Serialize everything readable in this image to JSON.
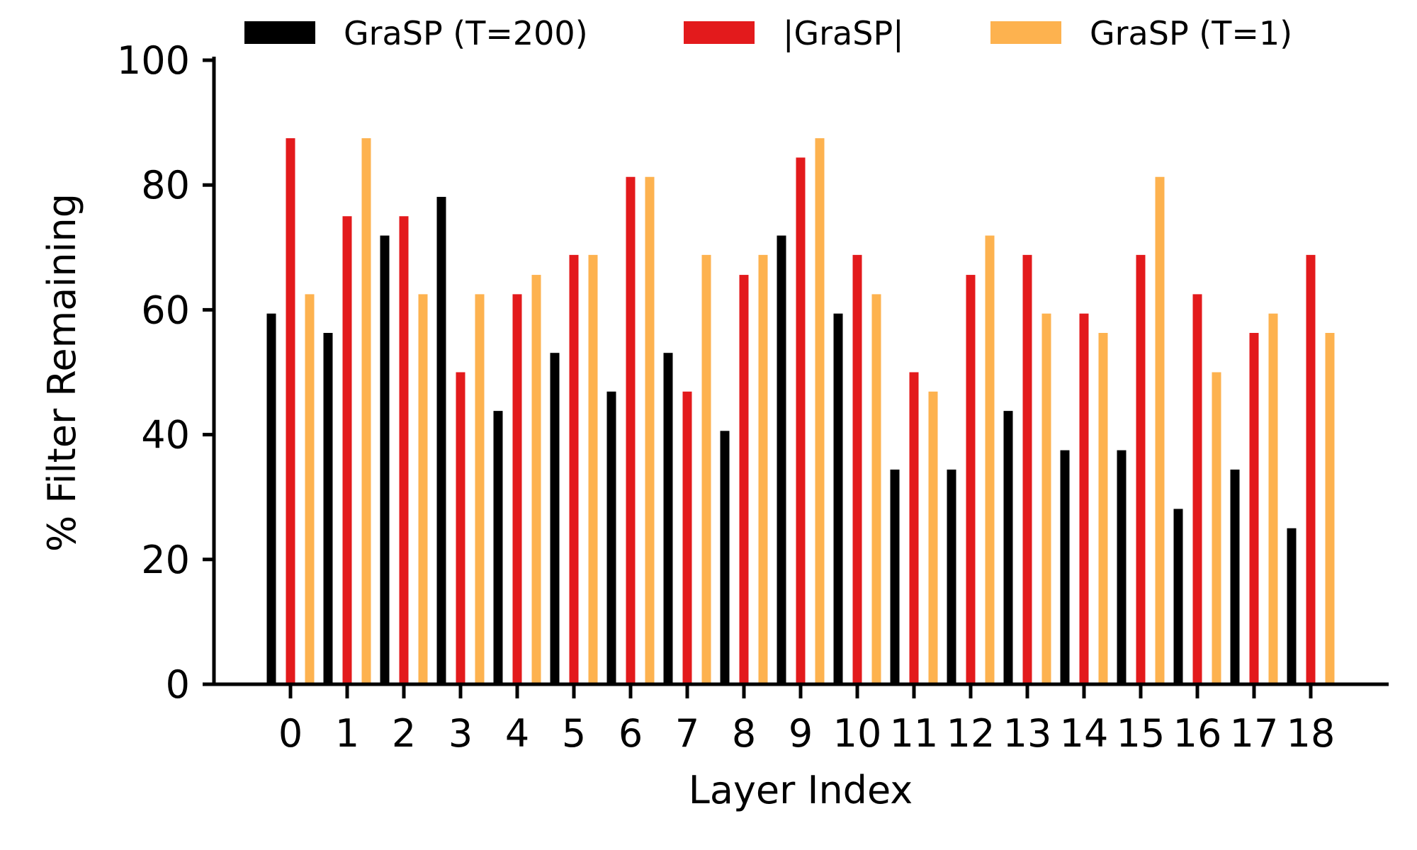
{
  "chart_data": {
    "type": "bar",
    "xlabel": "Layer Index",
    "ylabel": "% Filter Remaining",
    "ylim": [
      0,
      100
    ],
    "yticks": [
      0,
      20,
      40,
      60,
      80,
      100
    ],
    "grid": false,
    "legend_position": "top",
    "categories": [
      "0",
      "1",
      "2",
      "3",
      "4",
      "5",
      "6",
      "7",
      "8",
      "9",
      "10",
      "11",
      "12",
      "13",
      "14",
      "15",
      "16",
      "17",
      "18"
    ],
    "series": [
      {
        "name": "GraSP (T=200)",
        "color": "#000000",
        "values": [
          59.4,
          56.3,
          71.9,
          78.1,
          43.8,
          53.1,
          46.9,
          53.1,
          40.6,
          71.9,
          59.4,
          34.4,
          34.4,
          43.8,
          37.5,
          37.5,
          28.1,
          34.4,
          25.0
        ]
      },
      {
        "name": "|GraSP|",
        "color": "#e31a1c",
        "values": [
          87.5,
          75.0,
          75.0,
          50.0,
          62.5,
          68.8,
          81.3,
          46.9,
          65.6,
          84.4,
          68.8,
          50.0,
          65.6,
          68.8,
          59.4,
          68.8,
          62.5,
          56.3,
          68.8
        ]
      },
      {
        "name": "GraSP (T=1)",
        "color": "#fdb24f",
        "values": [
          62.5,
          87.5,
          62.5,
          62.5,
          65.6,
          68.8,
          81.3,
          68.8,
          68.8,
          87.5,
          62.5,
          46.9,
          71.9,
          59.4,
          56.3,
          81.3,
          50.0,
          59.4,
          56.3
        ]
      }
    ]
  }
}
